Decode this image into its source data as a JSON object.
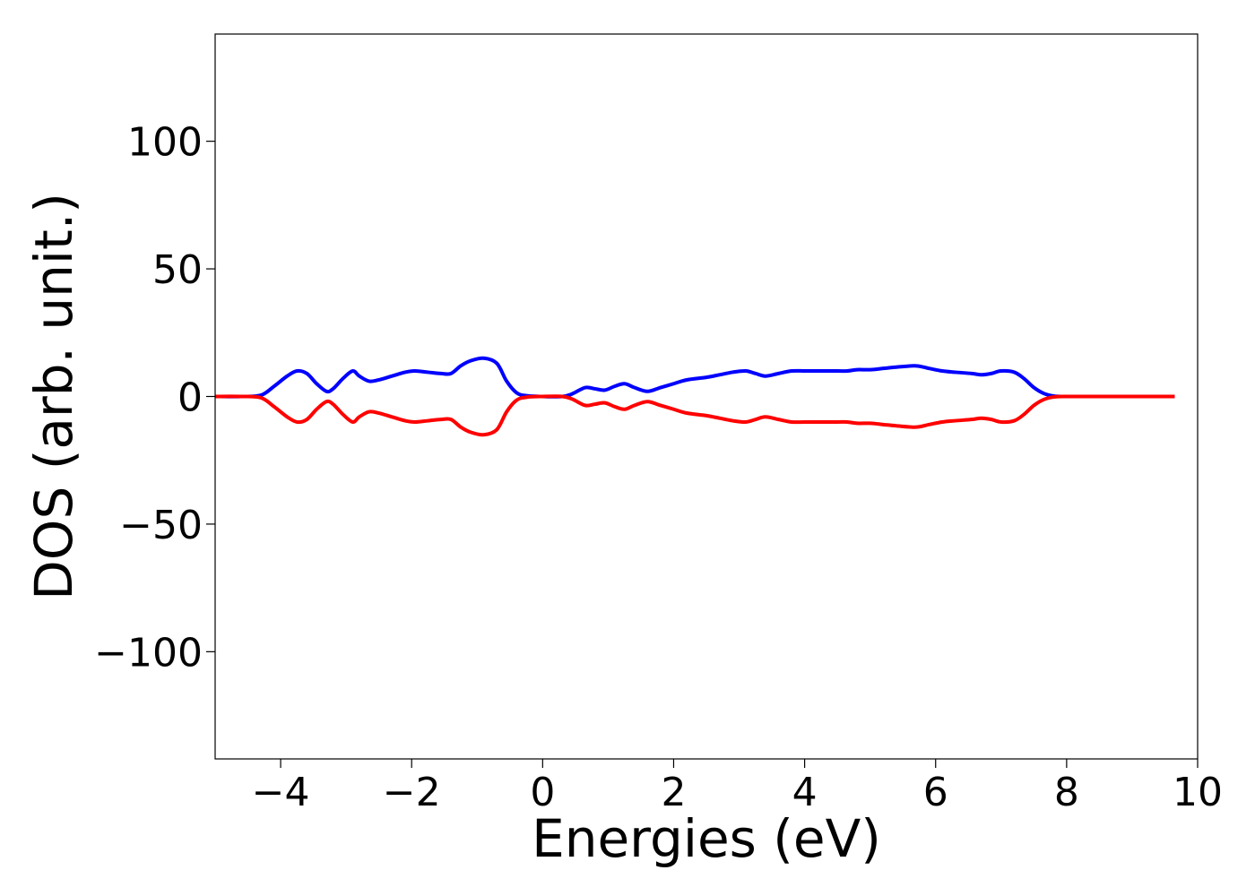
{
  "chart_data": {
    "type": "line",
    "title": "",
    "xlabel": "Energies (eV)",
    "ylabel": "DOS (arb. unit.)",
    "xlim": [
      -5,
      10
    ],
    "ylim": [
      -142,
      142
    ],
    "xticks": [
      -4,
      -2,
      0,
      2,
      4,
      6,
      8,
      10
    ],
    "yticks": [
      -100,
      -50,
      0,
      50,
      100
    ],
    "xtick_labels": [
      "−4",
      "−2",
      "0",
      "2",
      "4",
      "6",
      "8",
      "10"
    ],
    "ytick_labels": [
      "−100",
      "−50",
      "0",
      "50",
      "100"
    ],
    "grid": false,
    "legend": "none",
    "series": [
      {
        "color": "#0000ff",
        "x": [
          -5.0,
          -4.6,
          -4.3,
          -4.1,
          -3.9,
          -3.75,
          -3.6,
          -3.45,
          -3.3,
          -3.2,
          -3.05,
          -2.9,
          -2.8,
          -2.65,
          -2.5,
          -2.3,
          -2.1,
          -1.95,
          -1.75,
          -1.55,
          -1.4,
          -1.25,
          -1.1,
          -0.9,
          -0.7,
          -0.55,
          -0.4,
          -0.25,
          0.0,
          0.3,
          0.45,
          0.65,
          0.8,
          0.95,
          1.1,
          1.25,
          1.4,
          1.6,
          1.8,
          2.0,
          2.2,
          2.5,
          2.7,
          2.9,
          3.1,
          3.25,
          3.4,
          3.6,
          3.8,
          4.0,
          4.2,
          4.5,
          4.65,
          4.8,
          5.0,
          5.2,
          5.4,
          5.7,
          5.9,
          6.1,
          6.3,
          6.55,
          6.7,
          6.85,
          7.0,
          7.2,
          7.35,
          7.5,
          7.65,
          7.8,
          8.0,
          8.5,
          9.0,
          9.65
        ],
        "values": [
          0,
          0,
          0.5,
          4,
          8,
          10,
          9,
          5,
          2,
          3,
          7,
          10,
          8,
          6,
          6.5,
          8,
          9.5,
          10,
          9.5,
          9,
          9,
          12,
          14,
          15,
          13,
          6,
          1.5,
          0.3,
          0,
          0,
          1,
          3.5,
          3,
          2.5,
          4,
          5,
          3.5,
          2,
          3.5,
          5,
          6.5,
          7.5,
          8.5,
          9.5,
          10,
          9,
          8,
          9,
          10,
          10,
          10,
          10,
          10,
          10.5,
          10.5,
          11,
          11.5,
          12,
          11,
          10,
          9.5,
          9,
          8.5,
          9,
          10,
          9.5,
          7,
          3.5,
          1.2,
          0.2,
          0,
          0,
          0,
          0
        ]
      },
      {
        "color": "#ff0000",
        "x": [
          -5.0,
          -4.6,
          -4.3,
          -4.1,
          -3.9,
          -3.75,
          -3.6,
          -3.45,
          -3.3,
          -3.2,
          -3.05,
          -2.9,
          -2.8,
          -2.65,
          -2.5,
          -2.3,
          -2.1,
          -1.95,
          -1.75,
          -1.55,
          -1.4,
          -1.25,
          -1.1,
          -0.9,
          -0.7,
          -0.55,
          -0.4,
          -0.25,
          0.0,
          0.3,
          0.45,
          0.65,
          0.8,
          0.95,
          1.1,
          1.25,
          1.4,
          1.6,
          1.8,
          2.0,
          2.2,
          2.5,
          2.7,
          2.9,
          3.1,
          3.25,
          3.4,
          3.6,
          3.8,
          4.0,
          4.2,
          4.5,
          4.65,
          4.8,
          5.0,
          5.2,
          5.4,
          5.7,
          5.9,
          6.1,
          6.3,
          6.55,
          6.7,
          6.85,
          7.0,
          7.2,
          7.35,
          7.5,
          7.65,
          7.8,
          8.0,
          8.5,
          9.0,
          9.65
        ],
        "values": [
          0,
          0,
          -0.5,
          -4,
          -8,
          -10,
          -9,
          -5,
          -2,
          -3,
          -7,
          -10,
          -8,
          -6,
          -6.5,
          -8,
          -9.5,
          -10,
          -9.5,
          -9,
          -9,
          -12,
          -14,
          -15,
          -13,
          -6,
          -1.5,
          -0.3,
          0,
          0,
          -1,
          -3.5,
          -3,
          -2.5,
          -4,
          -5,
          -3.5,
          -2,
          -3.5,
          -5,
          -6.5,
          -7.5,
          -8.5,
          -9.5,
          -10,
          -9,
          -8,
          -9,
          -10,
          -10,
          -10,
          -10,
          -10,
          -10.5,
          -10.5,
          -11,
          -11.5,
          -12,
          -11,
          -10,
          -9.5,
          -9,
          -8.5,
          -9,
          -10,
          -9.5,
          -7,
          -3.5,
          -1.2,
          -0.2,
          0,
          0,
          0,
          0
        ]
      }
    ]
  }
}
